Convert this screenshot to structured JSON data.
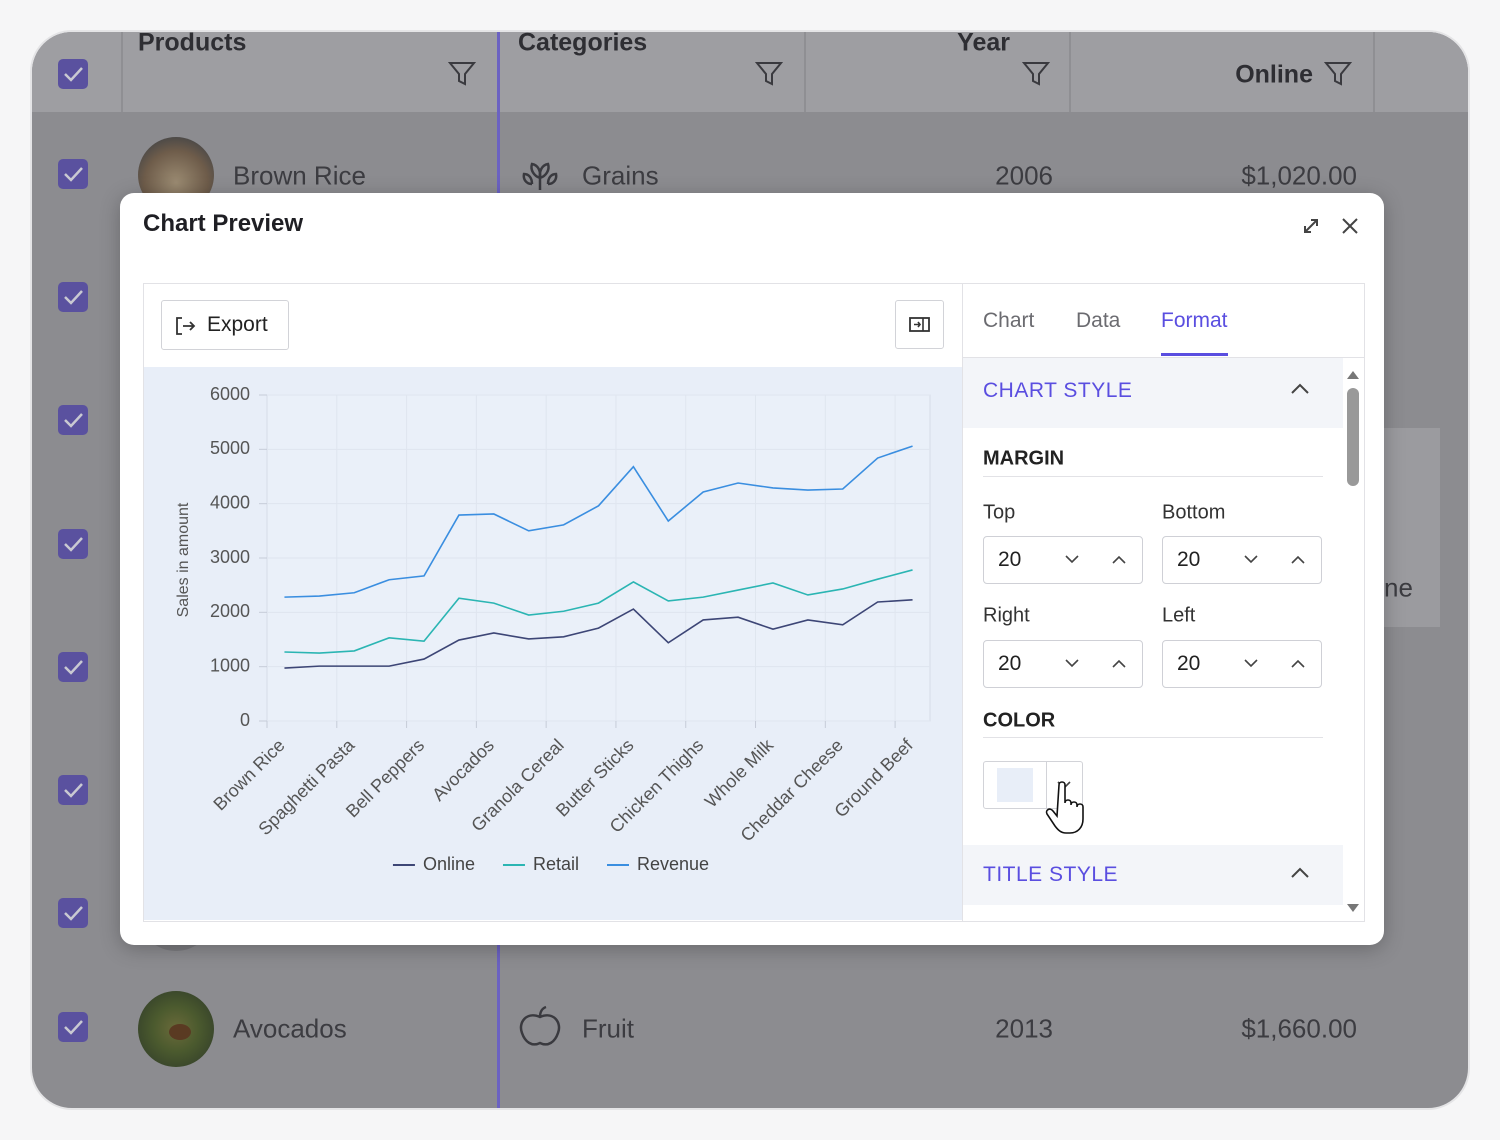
{
  "table": {
    "columns": [
      "Products",
      "Categories",
      "Year",
      "Online"
    ],
    "rows": [
      [
        "Brown Rice",
        "Grains",
        2006,
        "$1,020.00"
      ],
      [
        "Avocados",
        "Fruit",
        2013,
        "$1,660.00"
      ]
    ],
    "fragment": "ne"
  },
  "dialog": {
    "title": "Chart Preview",
    "export": "Export",
    "tabs": [
      "Chart",
      "Data",
      "Format"
    ],
    "active_tab": 2,
    "format": {
      "chart_style": "CHART STYLE",
      "margin": "MARGIN",
      "fields": [
        {
          "label": "Top",
          "value": 20
        },
        {
          "label": "Bottom",
          "value": 20
        },
        {
          "label": "Right",
          "value": 20
        },
        {
          "label": "Left",
          "value": 20
        }
      ],
      "color": "COLOR",
      "color_value": "#e8eef8",
      "title_style": "TITLE STYLE"
    }
  },
  "chart_data": {
    "type": "line",
    "y_label": "Sales in amount",
    "categories": [
      "Brown Rice",
      null,
      "Spaghetti Pasta",
      null,
      "Bell Peppers",
      null,
      "Avocados",
      null,
      "Granola Cereal",
      null,
      "Butter Sticks",
      null,
      "Chicken Thighs",
      null,
      "Whole Milk",
      null,
      "Cheddar Cheese",
      null,
      "Ground Beef"
    ],
    "series": [
      {
        "name": "Online",
        "color": "#3d4676",
        "values": [
          975,
          1010,
          1010,
          1010,
          1140,
          1490,
          1620,
          1510,
          1550,
          1710,
          2060,
          1440,
          1860,
          1910,
          1690,
          1860,
          1770,
          2190,
          2230
        ]
      },
      {
        "name": "Retail",
        "color": "#2bb5b3",
        "values": [
          1270,
          1250,
          1290,
          1530,
          1470,
          2260,
          2170,
          1950,
          2020,
          2170,
          2560,
          2210,
          2280,
          2410,
          2540,
          2320,
          2430,
          2610,
          2780
        ]
      },
      {
        "name": "Revenue",
        "color": "#3a8ee0",
        "values": [
          2280,
          2300,
          2360,
          2600,
          2670,
          3790,
          3810,
          3500,
          3610,
          3960,
          4680,
          3680,
          4215,
          4380,
          4290,
          4250,
          4270,
          4840,
          5060
        ]
      }
    ],
    "ylim": [
      0,
      6000
    ],
    "yticks": [
      0,
      1000,
      2000,
      3000,
      4000,
      5000,
      6000
    ],
    "grid": true,
    "legend": "bottom"
  }
}
